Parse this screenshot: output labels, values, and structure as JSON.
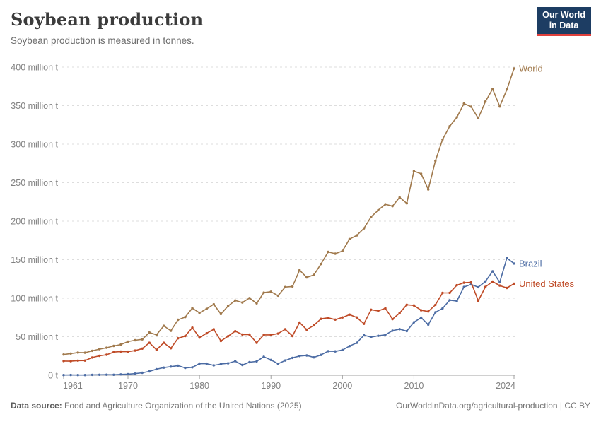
{
  "header": {
    "title": "Soybean production",
    "subtitle": "Soybean production is measured in tonnes."
  },
  "logo": {
    "line1": "Our World",
    "line2": "in Data"
  },
  "footer": {
    "source_label": "Data source:",
    "source_text": "Food and Agriculture Organization of the United Nations (2025)",
    "link_text": "OurWorldinData.org/agricultural-production | CC BY"
  },
  "colors": {
    "logo_bg": "#1D3D63",
    "logo_underline": "#E0403C",
    "grid": "#DDDDDD",
    "axis": "#A1A1A1",
    "tick_label": "#818181"
  },
  "chart_data": {
    "type": "line",
    "title": "Soybean production",
    "unit": "million tonnes",
    "xlabel": "",
    "ylabel": "",
    "xlim": [
      1961,
      2024
    ],
    "ylim": [
      0,
      400
    ],
    "grid": "horizontal-dashed",
    "legend": "end-of-line-labels",
    "point_markers": true,
    "x": [
      1961,
      1962,
      1963,
      1964,
      1965,
      1966,
      1967,
      1968,
      1969,
      1970,
      1971,
      1972,
      1973,
      1974,
      1975,
      1976,
      1977,
      1978,
      1979,
      1980,
      1981,
      1982,
      1983,
      1984,
      1985,
      1986,
      1987,
      1988,
      1989,
      1990,
      1991,
      1992,
      1993,
      1994,
      1995,
      1996,
      1997,
      1998,
      1999,
      2000,
      2001,
      2002,
      2003,
      2004,
      2005,
      2006,
      2007,
      2008,
      2009,
      2010,
      2011,
      2012,
      2013,
      2014,
      2015,
      2016,
      2017,
      2018,
      2019,
      2020,
      2021,
      2022,
      2023,
      2024
    ],
    "xticks": {
      "values": [
        1961,
        1970,
        1980,
        1990,
        2000,
        2010,
        2024
      ],
      "labels": [
        "1961",
        "1970",
        "1980",
        "1990",
        "2000",
        "2010",
        "2024"
      ]
    },
    "yticks": {
      "values": [
        0,
        50,
        100,
        150,
        200,
        250,
        300,
        350,
        400
      ],
      "labels": [
        "0 t",
        "50 million t",
        "100 million t",
        "150 million t",
        "200 million t",
        "250 million t",
        "300 million t",
        "350 million t",
        "400 million t"
      ]
    },
    "series": [
      {
        "name": "World",
        "color": "#A0794C",
        "values": [
          26.88,
          28.12,
          29.42,
          29.26,
          31.77,
          33.86,
          35.65,
          38.07,
          39.79,
          43.71,
          45.37,
          46.56,
          55.45,
          52.44,
          64.11,
          57.73,
          72.04,
          75.53,
          87.02,
          81.04,
          86.13,
          92.08,
          79.47,
          89.92,
          97.06,
          94.44,
          100.19,
          93.26,
          107.25,
          108.45,
          103.31,
          114.45,
          115.2,
          136.46,
          126.95,
          130.26,
          144.42,
          160.1,
          157.8,
          161.29,
          176.76,
          181.55,
          190.65,
          205.52,
          214.35,
          221.97,
          219.53,
          230.95,
          223.18,
          265.04,
          261.58,
          241.18,
          278.34,
          306.09,
          323.2,
          334.89,
          352.64,
          348.71,
          333.67,
          355.39,
          371.69,
          348.86,
          370.96,
          398.2
        ]
      },
      {
        "name": "Brazil",
        "color": "#4C6CA4",
        "values": [
          0.27,
          0.35,
          0.32,
          0.3,
          0.52,
          0.6,
          0.72,
          0.65,
          1.06,
          1.51,
          2.08,
          3.22,
          5.01,
          7.88,
          9.89,
          11.23,
          12.51,
          9.54,
          10.24,
          15.16,
          15.01,
          12.84,
          14.58,
          15.54,
          18.28,
          13.33,
          16.98,
          18.02,
          24.05,
          19.9,
          14.94,
          19.21,
          22.59,
          24.93,
          25.68,
          23.17,
          26.39,
          31.31,
          30.99,
          32.73,
          37.91,
          42.11,
          51.92,
          49.55,
          51.18,
          52.46,
          57.86,
          59.83,
          57.35,
          68.76,
          74.82,
          65.7,
          81.72,
          86.76,
          97.46,
          96.3,
          114.6,
          117.91,
          114.32,
          121.8,
          134.93,
          120.7,
          152.14,
          145.0
        ]
      },
      {
        "name": "United States",
        "color": "#BF4A26",
        "values": [
          18.47,
          18.22,
          19.03,
          19.08,
          23.01,
          25.27,
          26.58,
          30.13,
          30.84,
          30.68,
          32.01,
          34.58,
          42.12,
          33.1,
          42.14,
          35.07,
          47.95,
          50.86,
          61.72,
          48.92,
          54.44,
          59.61,
          44.52,
          50.64,
          57.13,
          52.87,
          52.75,
          42.15,
          52.35,
          52.42,
          54.07,
          59.61,
          50.89,
          68.44,
          59.17,
          64.78,
          73.18,
          74.6,
          72.22,
          75.06,
          78.67,
          75.01,
          66.78,
          85.02,
          83.51,
          87.0,
          72.86,
          80.75,
          91.47,
          90.66,
          84.29,
          82.79,
          91.39,
          106.88,
          106.93,
          116.92,
          120.07,
          120.51,
          96.67,
          114.75,
          121.53,
          116.38,
          113.34,
          118.84
        ]
      }
    ]
  }
}
